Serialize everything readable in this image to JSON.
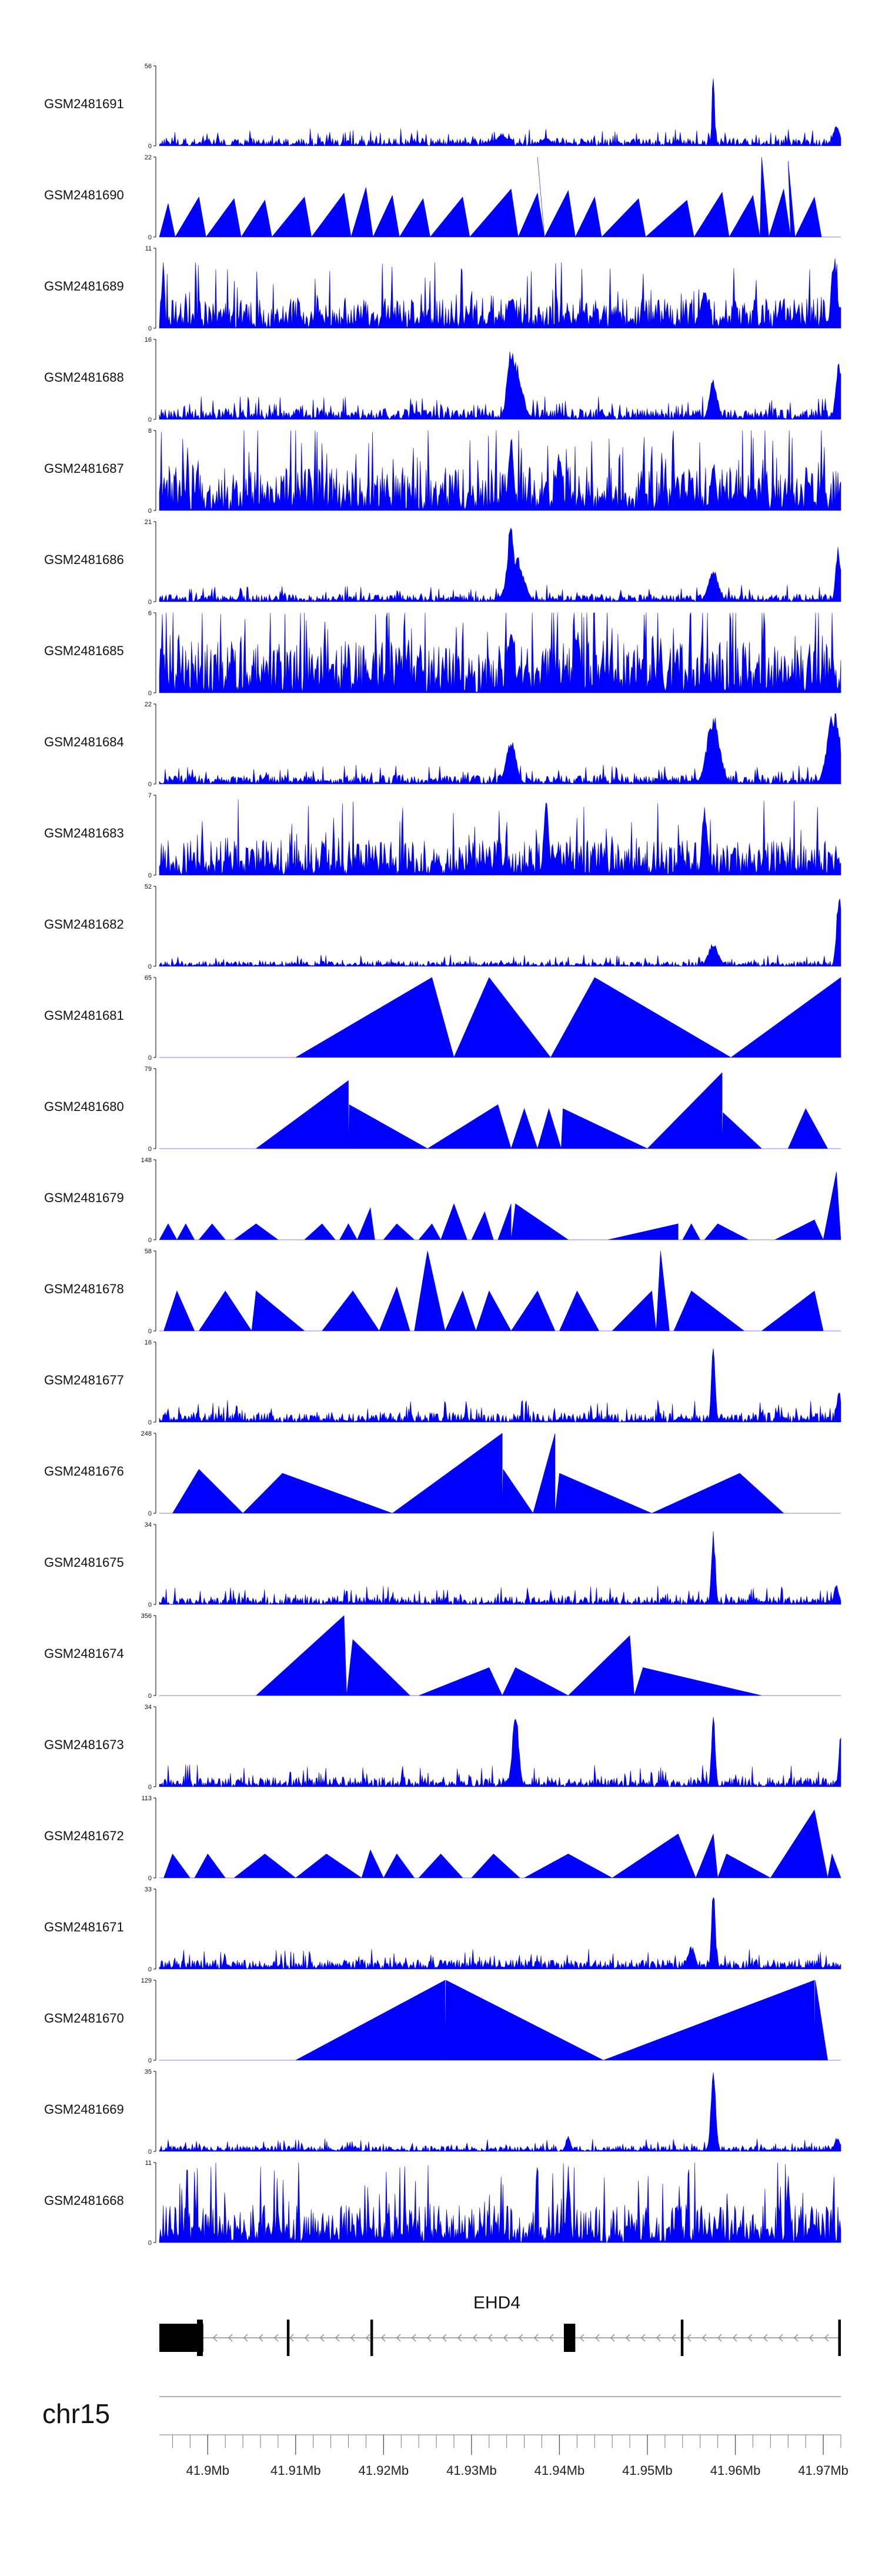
{
  "chart_data": {
    "type": "area",
    "chromosome": "chr15",
    "genome_axis": {
      "unit": "Mb",
      "range_mb": [
        41.8945,
        41.972
      ],
      "major_ticks_mb": [
        41.9,
        41.91,
        41.92,
        41.93,
        41.94,
        41.95,
        41.96,
        41.97
      ],
      "major_tick_labels": [
        "41.9Mb",
        "41.91Mb",
        "41.92Mb",
        "41.93Mb",
        "41.94Mb",
        "41.95Mb",
        "41.96Mb",
        "41.97Mb"
      ]
    },
    "gene": {
      "name": "EHD4",
      "strand": "-",
      "start_mb": 41.8945,
      "end_mb": 41.972,
      "exons_mb": [
        [
          41.8945,
          41.8995
        ],
        [
          41.909,
          41.9093
        ],
        [
          41.9185,
          41.9188
        ],
        [
          41.9405,
          41.9418
        ],
        [
          41.9538,
          41.9541
        ],
        [
          41.9717,
          41.972
        ]
      ],
      "thick_exons": [
        0,
        3
      ]
    },
    "tracks": [
      {
        "name": "GSM2481691",
        "ymax": 56,
        "style": "dense",
        "seed": 11,
        "base": 0.045,
        "noise": 0.09,
        "peaks": [
          [
            41.9335,
            0.16,
            0.0008
          ],
          [
            41.9385,
            0.1,
            0.0008
          ],
          [
            41.9575,
            1.0,
            0.0002
          ],
          [
            41.9715,
            0.3,
            0.0005
          ]
        ]
      },
      {
        "name": "GSM2481690",
        "ymax": 22,
        "style": "sparse",
        "seed": 21,
        "spikes": [
          [
            41.8955,
            0.42
          ],
          [
            41.899,
            0.5
          ],
          [
            41.903,
            0.48
          ],
          [
            41.9065,
            0.46
          ],
          [
            41.911,
            0.5
          ],
          [
            41.9155,
            0.55
          ],
          [
            41.918,
            0.62
          ],
          [
            41.921,
            0.52
          ],
          [
            41.9245,
            0.48
          ],
          [
            41.929,
            0.5
          ],
          [
            41.9345,
            0.6
          ],
          [
            41.9375,
            0.55
          ],
          [
            41.941,
            0.58
          ],
          [
            41.944,
            0.5
          ],
          [
            41.949,
            0.48
          ],
          [
            41.9545,
            0.46
          ],
          [
            41.9585,
            0.56
          ],
          [
            41.962,
            0.52
          ],
          [
            41.9655,
            0.6
          ],
          [
            41.969,
            0.5
          ]
        ],
        "peaks": [
          [
            41.9375,
            1.0,
            0.0003
          ],
          [
            41.963,
            1.0,
            0.0003
          ],
          [
            41.966,
            0.95,
            0.0003
          ]
        ]
      },
      {
        "name": "GSM2481689",
        "ymax": 11,
        "style": "dense",
        "seed": 31,
        "base": 0.18,
        "noise": 0.34,
        "peaks": [
          [
            41.9345,
            0.45,
            0.0006
          ],
          [
            41.9565,
            0.5,
            0.0006
          ],
          [
            41.9712,
            1.0,
            0.0004
          ]
        ]
      },
      {
        "name": "GSM2481688",
        "ymax": 16,
        "style": "dense",
        "seed": 41,
        "base": 0.06,
        "noise": 0.12,
        "peaks": [
          [
            41.9345,
            1.0,
            0.0006
          ],
          [
            41.935,
            0.75,
            0.001
          ],
          [
            41.9575,
            0.55,
            0.0006
          ],
          [
            41.9718,
            0.75,
            0.0005
          ]
        ]
      },
      {
        "name": "GSM2481687",
        "ymax": 8,
        "style": "dense",
        "seed": 51,
        "base": 0.25,
        "noise": 0.5,
        "peaks": [
          [
            41.9345,
            1.0,
            0.0004
          ],
          [
            41.94,
            0.8,
            0.0004
          ],
          [
            41.9575,
            0.7,
            0.0004
          ]
        ]
      },
      {
        "name": "GSM2481686",
        "ymax": 21,
        "style": "dense",
        "seed": 61,
        "base": 0.04,
        "noise": 0.09,
        "peaks": [
          [
            41.9345,
            1.0,
            0.0006
          ],
          [
            41.935,
            0.6,
            0.0012
          ],
          [
            41.9575,
            0.4,
            0.0008
          ],
          [
            41.9717,
            0.7,
            0.0004
          ]
        ]
      },
      {
        "name": "GSM2481685",
        "ymax": 6,
        "style": "dense",
        "seed": 71,
        "base": 0.32,
        "noise": 0.55,
        "peaks": [
          [
            41.9345,
            0.95,
            0.0005
          ],
          [
            41.942,
            0.85,
            0.0005
          ]
        ]
      },
      {
        "name": "GSM2481684",
        "ymax": 22,
        "style": "dense",
        "seed": 81,
        "base": 0.05,
        "noise": 0.1,
        "peaks": [
          [
            41.9345,
            0.55,
            0.0008
          ],
          [
            41.9575,
            0.9,
            0.001
          ],
          [
            41.9712,
            0.95,
            0.001
          ]
        ]
      },
      {
        "name": "GSM2481683",
        "ymax": 7,
        "style": "dense",
        "seed": 91,
        "base": 0.2,
        "noise": 0.4,
        "peaks": [
          [
            41.9385,
            0.95,
            0.0004
          ],
          [
            41.9565,
            0.9,
            0.0004
          ]
        ]
      },
      {
        "name": "GSM2481682",
        "ymax": 52,
        "style": "dense",
        "seed": 101,
        "base": 0.03,
        "noise": 0.06,
        "peaks": [
          [
            41.9575,
            0.3,
            0.0008
          ],
          [
            41.9718,
            0.95,
            0.0004
          ]
        ]
      },
      {
        "name": "GSM2481681",
        "ymax": 65,
        "style": "triangles",
        "seed": 111,
        "triangles": [
          [
            41.91,
            41.9255,
            41.928,
            1.0
          ],
          [
            41.928,
            41.932,
            41.939,
            1.0
          ],
          [
            41.939,
            41.944,
            41.9595,
            1.0
          ],
          [
            41.9595,
            41.972,
            41.972,
            1.0
          ]
        ]
      },
      {
        "name": "GSM2481680",
        "ymax": 79,
        "style": "triangles",
        "seed": 121,
        "triangles": [
          [
            41.9055,
            41.916,
            41.916,
            0.85
          ],
          [
            41.916,
            41.9161,
            41.925,
            0.55
          ],
          [
            41.925,
            41.933,
            41.9345,
            0.55
          ],
          [
            41.9345,
            41.936,
            41.9375,
            0.5
          ],
          [
            41.9375,
            41.9388,
            41.9402,
            0.5
          ],
          [
            41.9402,
            41.9404,
            41.95,
            0.5
          ],
          [
            41.95,
            41.9585,
            41.9585,
            0.95
          ],
          [
            41.9585,
            41.9586,
            41.963,
            0.45
          ],
          [
            41.966,
            41.968,
            41.9705,
            0.5
          ]
        ]
      },
      {
        "name": "GSM2481679",
        "ymax": 148,
        "style": "triangles",
        "seed": 131,
        "triangles": [
          [
            41.8945,
            41.8955,
            41.8965,
            0.2
          ],
          [
            41.8965,
            41.8975,
            41.8985,
            0.2
          ],
          [
            41.899,
            41.9005,
            41.902,
            0.2
          ],
          [
            41.903,
            41.9055,
            41.908,
            0.2
          ],
          [
            41.911,
            41.913,
            41.9145,
            0.2
          ],
          [
            41.915,
            41.916,
            41.917,
            0.2
          ],
          [
            41.917,
            41.9185,
            41.919,
            0.4
          ],
          [
            41.92,
            41.9215,
            41.9235,
            0.2
          ],
          [
            41.924,
            41.9255,
            41.9265,
            0.2
          ],
          [
            41.9265,
            41.928,
            41.9295,
            0.45
          ],
          [
            41.93,
            41.9315,
            41.9325,
            0.35
          ],
          [
            41.933,
            41.9345,
            41.9345,
            0.45
          ],
          [
            41.9345,
            41.935,
            41.941,
            0.45
          ],
          [
            41.9455,
            41.9535,
            41.9535,
            0.2
          ],
          [
            41.954,
            41.955,
            41.956,
            0.2
          ],
          [
            41.9565,
            41.958,
            41.9615,
            0.2
          ],
          [
            41.9645,
            41.969,
            41.97,
            0.25
          ],
          [
            41.97,
            41.9715,
            41.972,
            0.85
          ]
        ]
      },
      {
        "name": "GSM2481678",
        "ymax": 58,
        "style": "triangles",
        "seed": 141,
        "triangles": [
          [
            41.895,
            41.8965,
            41.8985,
            0.5
          ],
          [
            41.899,
            41.902,
            41.905,
            0.5
          ],
          [
            41.905,
            41.9055,
            41.911,
            0.5
          ],
          [
            41.913,
            41.9165,
            41.9195,
            0.5
          ],
          [
            41.9195,
            41.9215,
            41.923,
            0.55
          ],
          [
            41.9235,
            41.925,
            41.927,
            1.0
          ],
          [
            41.927,
            41.929,
            41.9305,
            0.5
          ],
          [
            41.9305,
            41.932,
            41.9345,
            0.5
          ],
          [
            41.9345,
            41.9375,
            41.9395,
            0.5
          ],
          [
            41.94,
            41.942,
            41.9445,
            0.5
          ],
          [
            41.946,
            41.9505,
            41.951,
            0.5
          ],
          [
            41.951,
            41.9515,
            41.9525,
            1.0
          ],
          [
            41.953,
            41.955,
            41.961,
            0.5
          ],
          [
            41.963,
            41.969,
            41.97,
            0.5
          ]
        ]
      },
      {
        "name": "GSM2481677",
        "ymax": 16,
        "style": "dense",
        "seed": 151,
        "base": 0.05,
        "noise": 0.12,
        "peaks": [
          [
            41.9575,
            1.0,
            0.0003
          ],
          [
            41.9718,
            0.4,
            0.0004
          ]
        ]
      },
      {
        "name": "GSM2481676",
        "ymax": 248,
        "style": "triangles",
        "seed": 161,
        "triangles": [
          [
            41.896,
            41.899,
            41.904,
            0.55
          ],
          [
            41.904,
            41.9085,
            41.921,
            0.5
          ],
          [
            41.921,
            41.9335,
            41.9335,
            1.0
          ],
          [
            41.9335,
            41.9336,
            41.937,
            0.55
          ],
          [
            41.937,
            41.9395,
            41.9395,
            1.0
          ],
          [
            41.9395,
            41.94,
            41.9505,
            0.5
          ],
          [
            41.9505,
            41.9605,
            41.9655,
            0.5
          ]
        ]
      },
      {
        "name": "GSM2481675",
        "ymax": 34,
        "style": "dense",
        "seed": 171,
        "base": 0.04,
        "noise": 0.1,
        "peaks": [
          [
            41.9575,
            1.0,
            0.0003
          ],
          [
            41.9715,
            0.25,
            0.0004
          ]
        ]
      },
      {
        "name": "GSM2481674",
        "ymax": 356,
        "style": "triangles",
        "seed": 181,
        "triangles": [
          [
            41.9055,
            41.9155,
            41.9158,
            1.0
          ],
          [
            41.9158,
            41.9165,
            41.923,
            0.7
          ],
          [
            41.924,
            41.932,
            41.9335,
            0.35
          ],
          [
            41.9335,
            41.935,
            41.941,
            0.35
          ],
          [
            41.941,
            41.948,
            41.9485,
            0.75
          ],
          [
            41.9485,
            41.9495,
            41.963,
            0.35
          ]
        ]
      },
      {
        "name": "GSM2481673",
        "ymax": 34,
        "style": "dense",
        "seed": 191,
        "base": 0.05,
        "noise": 0.12,
        "peaks": [
          [
            41.935,
            1.0,
            0.0005
          ],
          [
            41.9575,
            0.95,
            0.0003
          ],
          [
            41.972,
            0.8,
            0.0003
          ]
        ]
      },
      {
        "name": "GSM2481672",
        "ymax": 113,
        "style": "triangles",
        "seed": 201,
        "triangles": [
          [
            41.895,
            41.896,
            41.898,
            0.3
          ],
          [
            41.8985,
            41.9,
            41.902,
            0.3
          ],
          [
            41.903,
            41.9065,
            41.91,
            0.3
          ],
          [
            41.91,
            41.9135,
            41.9175,
            0.3
          ],
          [
            41.9175,
            41.9185,
            41.92,
            0.35
          ],
          [
            41.92,
            41.9215,
            41.9235,
            0.3
          ],
          [
            41.924,
            41.9265,
            41.929,
            0.3
          ],
          [
            41.93,
            41.9325,
            41.9355,
            0.3
          ],
          [
            41.936,
            41.941,
            41.946,
            0.3
          ],
          [
            41.946,
            41.9535,
            41.9555,
            0.55
          ],
          [
            41.9555,
            41.9575,
            41.958,
            0.55
          ],
          [
            41.958,
            41.959,
            41.964,
            0.3
          ],
          [
            41.964,
            41.969,
            41.9705,
            0.85
          ],
          [
            41.9705,
            41.971,
            41.972,
            0.3
          ]
        ]
      },
      {
        "name": "GSM2481671",
        "ymax": 33,
        "style": "dense",
        "seed": 211,
        "base": 0.06,
        "noise": 0.1,
        "peaks": [
          [
            41.9575,
            1.0,
            0.0003
          ],
          [
            41.955,
            0.3,
            0.0006
          ]
        ]
      },
      {
        "name": "GSM2481670",
        "ymax": 129,
        "style": "triangles",
        "seed": 221,
        "triangles": [
          [
            41.91,
            41.927,
            41.927,
            1.0
          ],
          [
            41.927,
            41.9271,
            41.945,
            1.0
          ],
          [
            41.945,
            41.969,
            41.969,
            1.0
          ],
          [
            41.969,
            41.9691,
            41.9705,
            1.0
          ]
        ]
      },
      {
        "name": "GSM2481669",
        "ymax": 35,
        "style": "dense",
        "seed": 231,
        "base": 0.03,
        "noise": 0.07,
        "peaks": [
          [
            41.941,
            0.2,
            0.0004
          ],
          [
            41.9575,
            1.0,
            0.0004
          ],
          [
            41.9716,
            0.18,
            0.0005
          ]
        ]
      },
      {
        "name": "GSM2481668",
        "ymax": 11,
        "style": "dense",
        "seed": 241,
        "base": 0.2,
        "noise": 0.45,
        "peaks": [
          [
            41.941,
            0.98,
            0.0003
          ],
          [
            41.966,
            0.9,
            0.0003
          ]
        ]
      }
    ],
    "colors": {
      "signal": "#0000ff",
      "axis": "#000000",
      "grid": "#808080",
      "text": "#111111"
    }
  }
}
